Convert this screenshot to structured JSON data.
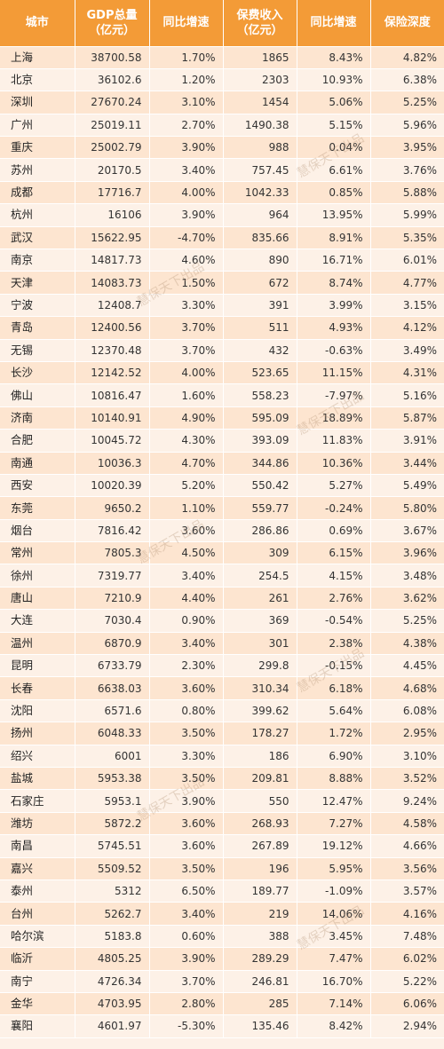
{
  "headers": [
    {
      "lines": [
        "城市"
      ]
    },
    {
      "lines": [
        "GDP总量",
        "（亿元）"
      ]
    },
    {
      "lines": [
        "同比增速"
      ]
    },
    {
      "lines": [
        "保费收入",
        "（亿元）"
      ]
    },
    {
      "lines": [
        "同比增速"
      ]
    },
    {
      "lines": [
        "保险深度"
      ]
    }
  ],
  "rows": [
    [
      "上海",
      "38700.58",
      "1.70%",
      "1865",
      "8.43%",
      "4.82%"
    ],
    [
      "北京",
      "36102.6",
      "1.20%",
      "2303",
      "10.93%",
      "6.38%"
    ],
    [
      "深圳",
      "27670.24",
      "3.10%",
      "1454",
      "5.06%",
      "5.25%"
    ],
    [
      "广州",
      "25019.11",
      "2.70%",
      "1490.38",
      "5.15%",
      "5.96%"
    ],
    [
      "重庆",
      "25002.79",
      "3.90%",
      "988",
      "0.04%",
      "3.95%"
    ],
    [
      "苏州",
      "20170.5",
      "3.40%",
      "757.45",
      "6.61%",
      "3.76%"
    ],
    [
      "成都",
      "17716.7",
      "4.00%",
      "1042.33",
      "0.85%",
      "5.88%"
    ],
    [
      "杭州",
      "16106",
      "3.90%",
      "964",
      "13.95%",
      "5.99%"
    ],
    [
      "武汉",
      "15622.95",
      "-4.70%",
      "835.66",
      "8.91%",
      "5.35%"
    ],
    [
      "南京",
      "14817.73",
      "4.60%",
      "890",
      "16.71%",
      "6.01%"
    ],
    [
      "天津",
      "14083.73",
      "1.50%",
      "672",
      "8.74%",
      "4.77%"
    ],
    [
      "宁波",
      "12408.7",
      "3.30%",
      "391",
      "3.99%",
      "3.15%"
    ],
    [
      "青岛",
      "12400.56",
      "3.70%",
      "511",
      "4.93%",
      "4.12%"
    ],
    [
      "无锡",
      "12370.48",
      "3.70%",
      "432",
      "-0.63%",
      "3.49%"
    ],
    [
      "长沙",
      "12142.52",
      "4.00%",
      "523.65",
      "11.15%",
      "4.31%"
    ],
    [
      "佛山",
      "10816.47",
      "1.60%",
      "558.23",
      "-7.97%",
      "5.16%"
    ],
    [
      "济南",
      "10140.91",
      "4.90%",
      "595.09",
      "18.89%",
      "5.87%"
    ],
    [
      "合肥",
      "10045.72",
      "4.30%",
      "393.09",
      "11.83%",
      "3.91%"
    ],
    [
      "南通",
      "10036.3",
      "4.70%",
      "344.86",
      "10.36%",
      "3.44%"
    ],
    [
      "西安",
      "10020.39",
      "5.20%",
      "550.42",
      "5.27%",
      "5.49%"
    ],
    [
      "东莞",
      "9650.2",
      "1.10%",
      "559.77",
      "-0.24%",
      "5.80%"
    ],
    [
      "烟台",
      "7816.42",
      "3.60%",
      "286.86",
      "0.69%",
      "3.67%"
    ],
    [
      "常州",
      "7805.3",
      "4.50%",
      "309",
      "6.15%",
      "3.96%"
    ],
    [
      "徐州",
      "7319.77",
      "3.40%",
      "254.5",
      "4.15%",
      "3.48%"
    ],
    [
      "唐山",
      "7210.9",
      "4.40%",
      "261",
      "2.76%",
      "3.62%"
    ],
    [
      "大连",
      "7030.4",
      "0.90%",
      "369",
      "-0.54%",
      "5.25%"
    ],
    [
      "温州",
      "6870.9",
      "3.40%",
      "301",
      "2.38%",
      "4.38%"
    ],
    [
      "昆明",
      "6733.79",
      "2.30%",
      "299.8",
      "-0.15%",
      "4.45%"
    ],
    [
      "长春",
      "6638.03",
      "3.60%",
      "310.34",
      "6.18%",
      "4.68%"
    ],
    [
      "沈阳",
      "6571.6",
      "0.80%",
      "399.62",
      "5.64%",
      "6.08%"
    ],
    [
      "扬州",
      "6048.33",
      "3.50%",
      "178.27",
      "1.72%",
      "2.95%"
    ],
    [
      "绍兴",
      "6001",
      "3.30%",
      "186",
      "6.90%",
      "3.10%"
    ],
    [
      "盐城",
      "5953.38",
      "3.50%",
      "209.81",
      "8.88%",
      "3.52%"
    ],
    [
      "石家庄",
      "5953.1",
      "3.90%",
      "550",
      "12.47%",
      "9.24%"
    ],
    [
      "潍坊",
      "5872.2",
      "3.60%",
      "268.93",
      "7.27%",
      "4.58%"
    ],
    [
      "南昌",
      "5745.51",
      "3.60%",
      "267.89",
      "19.12%",
      "4.66%"
    ],
    [
      "嘉兴",
      "5509.52",
      "3.50%",
      "196",
      "5.95%",
      "3.56%"
    ],
    [
      "泰州",
      "5312",
      "6.50%",
      "189.77",
      "-1.09%",
      "3.57%"
    ],
    [
      "台州",
      "5262.7",
      "3.40%",
      "219",
      "14.06%",
      "4.16%"
    ],
    [
      "哈尔滨",
      "5183.8",
      "0.60%",
      "388",
      "3.45%",
      "7.48%"
    ],
    [
      "临沂",
      "4805.25",
      "3.90%",
      "289.29",
      "7.47%",
      "6.02%"
    ],
    [
      "南宁",
      "4726.34",
      "3.70%",
      "246.81",
      "16.70%",
      "5.22%"
    ],
    [
      "金华",
      "4703.95",
      "2.80%",
      "285",
      "7.14%",
      "6.06%"
    ],
    [
      "襄阳",
      "4601.97",
      "-5.30%",
      "135.46",
      "8.42%",
      "2.94%"
    ]
  ],
  "watermark": "慧保天下出品",
  "colors": {
    "header_bg": "#f39b37",
    "row_odd_bg": "#fde5d0",
    "row_even_bg": "#fdf1e7",
    "text": "#333333"
  }
}
